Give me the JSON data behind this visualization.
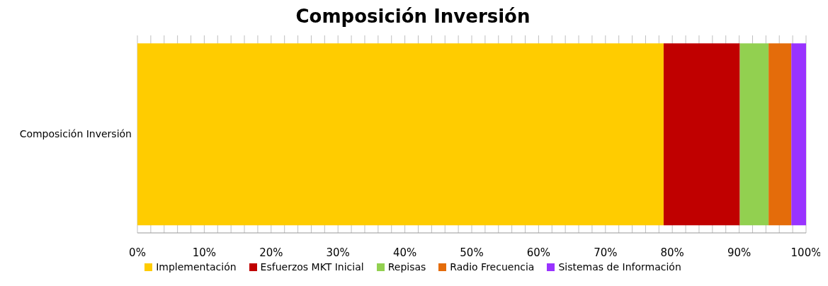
{
  "chart_data": {
    "type": "bar",
    "title": "Composición Inversión",
    "orientation": "horizontal",
    "stacked": true,
    "categories": [
      "Composición Inversión"
    ],
    "series": [
      {
        "name": "Implementación",
        "color": "#ffcc00",
        "values": [
          78.7
        ]
      },
      {
        "name": "Esfuerzos MKT Inicial",
        "color": "#c00000",
        "values": [
          11.4
        ]
      },
      {
        "name": "Repisas",
        "color": "#92d050",
        "values": [
          4.3
        ]
      },
      {
        "name": "Radio Frecuencia",
        "color": "#e46c0a",
        "values": [
          3.4
        ]
      },
      {
        "name": "Sistemas de Información",
        "color": "#9933ff",
        "values": [
          2.2
        ]
      }
    ],
    "xlim": [
      0,
      100
    ],
    "xticks": [
      {
        "value": 0,
        "label": "0%"
      },
      {
        "value": 2,
        "label": null
      },
      {
        "value": 4,
        "label": null
      },
      {
        "value": 6,
        "label": null
      },
      {
        "value": 8,
        "label": null
      },
      {
        "value": 10,
        "label": "10%"
      },
      {
        "value": 12,
        "label": null
      },
      {
        "value": 14,
        "label": null
      },
      {
        "value": 16,
        "label": null
      },
      {
        "value": 18,
        "label": null
      },
      {
        "value": 20,
        "label": "20%"
      },
      {
        "value": 22,
        "label": null
      },
      {
        "value": 24,
        "label": null
      },
      {
        "value": 26,
        "label": null
      },
      {
        "value": 28,
        "label": null
      },
      {
        "value": 30,
        "label": "30%"
      },
      {
        "value": 32,
        "label": null
      },
      {
        "value": 34,
        "label": null
      },
      {
        "value": 36,
        "label": null
      },
      {
        "value": 38,
        "label": null
      },
      {
        "value": 40,
        "label": "40%"
      },
      {
        "value": 42,
        "label": null
      },
      {
        "value": 44,
        "label": null
      },
      {
        "value": 46,
        "label": null
      },
      {
        "value": 48,
        "label": null
      },
      {
        "value": 50,
        "label": "50%"
      },
      {
        "value": 52,
        "label": null
      },
      {
        "value": 54,
        "label": null
      },
      {
        "value": 56,
        "label": null
      },
      {
        "value": 58,
        "label": null
      },
      {
        "value": 60,
        "label": "60%"
      },
      {
        "value": 62,
        "label": null
      },
      {
        "value": 64,
        "label": null
      },
      {
        "value": 66,
        "label": null
      },
      {
        "value": 68,
        "label": null
      },
      {
        "value": 70,
        "label": "70%"
      },
      {
        "value": 72,
        "label": null
      },
      {
        "value": 74,
        "label": null
      },
      {
        "value": 76,
        "label": null
      },
      {
        "value": 78,
        "label": null
      },
      {
        "value": 80,
        "label": "80%"
      },
      {
        "value": 82,
        "label": null
      },
      {
        "value": 84,
        "label": null
      },
      {
        "value": 86,
        "label": null
      },
      {
        "value": 88,
        "label": null
      },
      {
        "value": 90,
        "label": "90%"
      },
      {
        "value": 92,
        "label": null
      },
      {
        "value": 94,
        "label": null
      },
      {
        "value": 96,
        "label": null
      },
      {
        "value": 98,
        "label": null
      },
      {
        "value": 100,
        "label": "100%"
      }
    ],
    "grid": "x",
    "legend": "bottom"
  }
}
